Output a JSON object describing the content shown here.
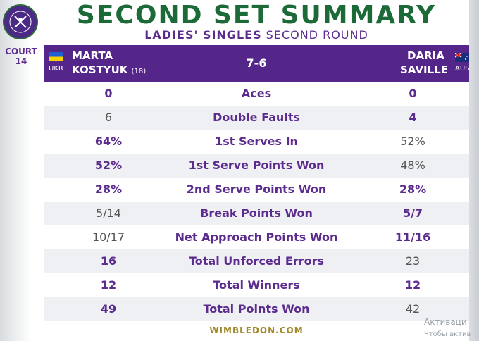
{
  "logo": {
    "icon": "wimbledon-logo-icon",
    "colors": {
      "fill": "#4b2a86",
      "ring": "#2e6b3a"
    }
  },
  "court": {
    "line1": "COURT",
    "line2": "14"
  },
  "header": {
    "title": "SECOND SET SUMMARY",
    "subtitle_bold": "LADIES' SINGLES",
    "subtitle_rest": " SECOND ROUND",
    "score": "7-6"
  },
  "players": {
    "left": {
      "first": "MARTA",
      "last": "KOSTYUK",
      "seed": "(18)",
      "country": "UKR"
    },
    "right": {
      "first": "DARIA",
      "last": "SAVILLE",
      "country": "AUS"
    }
  },
  "stats": [
    {
      "label": "Aces",
      "left": "0",
      "right": "0",
      "left_lead": true,
      "right_lead": true
    },
    {
      "label": "Double Faults",
      "left": "6",
      "right": "4",
      "left_lead": false,
      "right_lead": true
    },
    {
      "label": "1st Serves In",
      "left": "64%",
      "right": "52%",
      "left_lead": true,
      "right_lead": false
    },
    {
      "label": "1st Serve Points Won",
      "left": "52%",
      "right": "48%",
      "left_lead": true,
      "right_lead": false
    },
    {
      "label": "2nd Serve Points Won",
      "left": "28%",
      "right": "28%",
      "left_lead": true,
      "right_lead": true
    },
    {
      "label": "Break Points Won",
      "left": "5/14",
      "right": "5/7",
      "left_lead": false,
      "right_lead": true
    },
    {
      "label": "Net Approach Points Won",
      "left": "10/17",
      "right": "11/16",
      "left_lead": false,
      "right_lead": true
    },
    {
      "label": "Total Unforced Errors",
      "left": "16",
      "right": "23",
      "left_lead": true,
      "right_lead": false
    },
    {
      "label": "Total Winners",
      "left": "12",
      "right": "12",
      "left_lead": true,
      "right_lead": true
    },
    {
      "label": "Total Points Won",
      "left": "49",
      "right": "42",
      "left_lead": true,
      "right_lead": false
    }
  ],
  "footer": "WIMBLEDON.COM",
  "watermark": {
    "line1": "Активаци",
    "line2": "Чтобы актив"
  },
  "colors": {
    "purple": "#55268a",
    "green": "#1b6a37",
    "gold": "#a08a2a"
  }
}
